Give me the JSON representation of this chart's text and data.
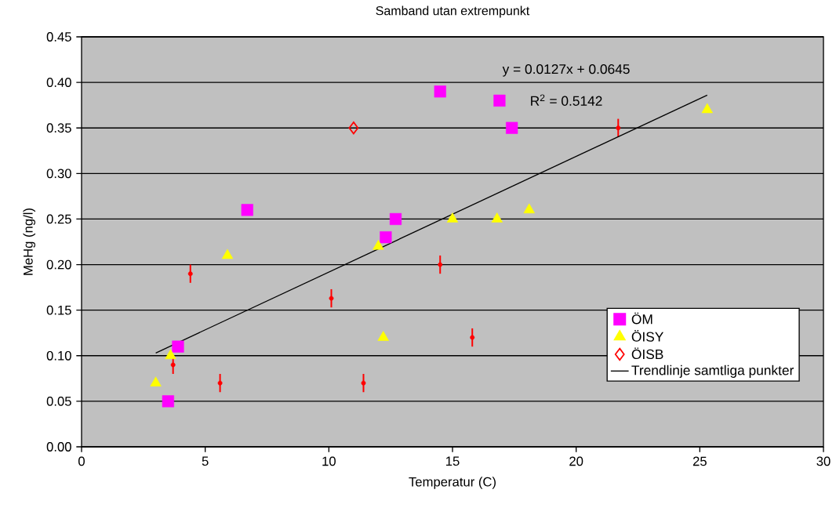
{
  "chart_data": {
    "type": "scatter",
    "title": "Samband utan extrempunkt",
    "xlabel": "Temperatur (C)",
    "ylabel": "MeHg (ng/l)",
    "xlim": [
      0,
      30
    ],
    "xticks": [
      0,
      5,
      10,
      15,
      20,
      25,
      30
    ],
    "ylim": [
      0,
      0.45
    ],
    "yticks": [
      {
        "value": 0,
        "label": "0.00"
      },
      {
        "value": 0.05,
        "label": "0.05"
      },
      {
        "value": 0.1,
        "label": "0.10"
      },
      {
        "value": 0.15,
        "label": "0.15"
      },
      {
        "value": 0.2,
        "label": "0.20"
      },
      {
        "value": 0.25,
        "label": "0.25"
      },
      {
        "value": 0.3,
        "label": "0.30"
      },
      {
        "value": 0.35,
        "label": "0.35"
      },
      {
        "value": 0.4,
        "label": "0.40"
      },
      {
        "value": 0.45,
        "label": "0.45"
      }
    ],
    "grid": "y",
    "legend": "right",
    "series": [
      {
        "name": "ÖM",
        "color": "#ff00ff",
        "marker": "square",
        "x": [
          3.5,
          3.9,
          6.7,
          12.3,
          12.7,
          14.5,
          16.9,
          17.4
        ],
        "values": [
          0.05,
          0.11,
          0.26,
          0.23,
          0.25,
          0.39,
          0.38,
          0.35
        ]
      },
      {
        "name": "ÖISY",
        "color": "#ffff00",
        "marker": "triangle",
        "x": [
          3.0,
          3.6,
          5.9,
          12.0,
          12.2,
          15.0,
          16.8,
          18.1,
          25.3
        ],
        "values": [
          0.07,
          0.1,
          0.21,
          0.22,
          0.12,
          0.25,
          0.25,
          0.26,
          0.37
        ]
      },
      {
        "name": "ÖISB",
        "color": "#ff0000",
        "marker": "diamond",
        "x": [
          11.0
        ],
        "values": [
          0.35
        ]
      },
      {
        "color": "#ff0000",
        "marker": "none",
        "errors": [
          0.01,
          0.01,
          0.01,
          0.01,
          0.01,
          0.01,
          0.01,
          0.01
        ],
        "x": [
          3.7,
          4.4,
          5.6,
          10.1,
          11.4,
          14.5,
          15.8,
          21.7
        ],
        "values": [
          0.09,
          0.19,
          0.07,
          0.163,
          0.07,
          0.2,
          0.12,
          0.35
        ]
      },
      {
        "name": "Trendlinje samtliga punkter",
        "type": "line",
        "color": "#000000",
        "marker": "none",
        "line_style": "solid",
        "x": [
          3.0,
          25.3
        ],
        "values": [
          0.103,
          0.386
        ]
      }
    ],
    "annotations": [
      "y = 0.0127x + 0.0645",
      "R$^{2}$ = 0.5142"
    ]
  }
}
